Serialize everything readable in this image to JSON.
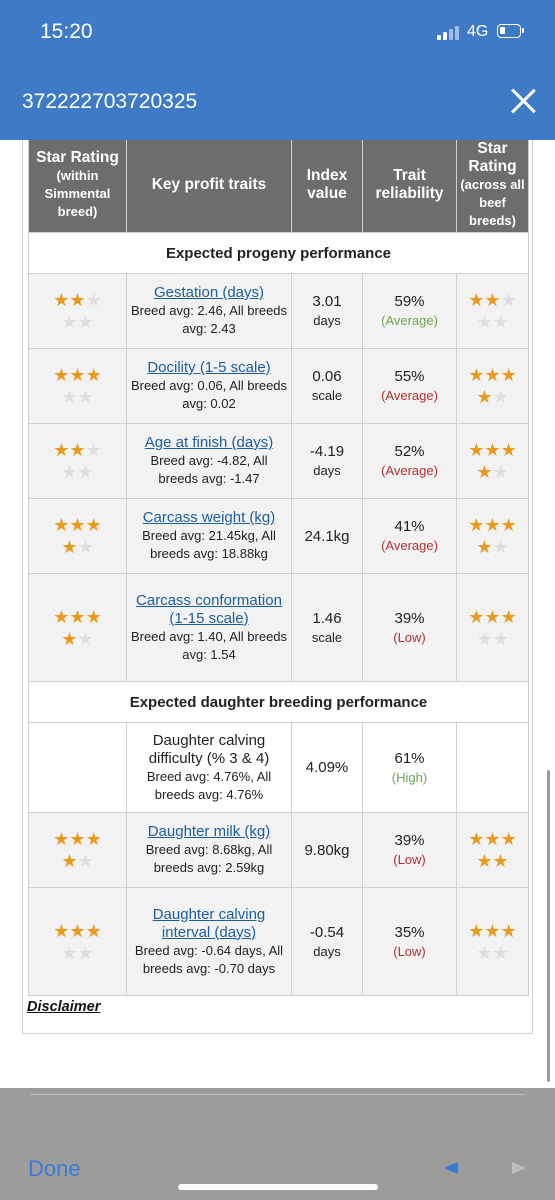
{
  "status": {
    "time": "15:20",
    "network": "4G"
  },
  "titlebar": {
    "title": "372222703720325"
  },
  "table": {
    "headers": {
      "star_left_title": "Star Rating",
      "star_left_sub": "(within Simmental breed)",
      "traits": "Key profit traits",
      "index": "Index value",
      "reliability": "Trait reliability",
      "star_right_title": "Star Rating",
      "star_right_sub": "(across all beef breeds)"
    },
    "sections": {
      "progeny": "Expected progeny performance",
      "daughter": "Expected daughter breeding performance"
    },
    "rows": [
      {
        "trait": "Gestation (days)",
        "avg": "Breed avg: 2.46, All breeds avg: 2.43",
        "index": "3.01",
        "unit": "days",
        "rel": "59%",
        "rel_q": "(Average)",
        "q_class": "avgc",
        "stars_left": 2,
        "stars_right": 2,
        "link": true
      },
      {
        "trait": "Docility (1-5 scale)",
        "avg": "Breed avg: 0.06, All breeds avg: 0.02",
        "index": "0.06",
        "unit": "scale",
        "rel": "55%",
        "rel_q": "(Average)",
        "q_class": "low",
        "stars_left": 3,
        "stars_right": 4,
        "link": true
      },
      {
        "trait": "Age at finish (days)",
        "avg": "Breed avg: -4.82, All breeds avg: -1.47",
        "index": "-4.19",
        "unit": "days",
        "rel": "52%",
        "rel_q": "(Average)",
        "q_class": "low",
        "stars_left": 2,
        "stars_right": 4,
        "link": true
      },
      {
        "trait": "Carcass weight (kg)",
        "avg": "Breed avg: 21.45kg, All breeds avg: 18.88kg",
        "index": "24.1kg",
        "unit": "",
        "rel": "41%",
        "rel_q": "(Average)",
        "q_class": "low",
        "stars_left": 4,
        "stars_right": 4,
        "link": true
      },
      {
        "trait": "Carcass conformation (1-15 scale)",
        "avg": "Breed avg: 1.40, All breeds avg: 1.54",
        "index": "1.46",
        "unit": "scale",
        "rel": "39%",
        "rel_q": "(Low)",
        "q_class": "low",
        "stars_left": 4,
        "stars_right": 3,
        "link": true
      },
      {
        "section": "daughter"
      },
      {
        "trait": "Daughter calving difficulty (% 3 & 4)",
        "avg": "Breed avg: 4.76%, All breeds avg: 4.76%",
        "index": "4.09%",
        "unit": "",
        "rel": "61%",
        "rel_q": "(High)",
        "q_class": "avgc",
        "stars_left": 0,
        "stars_right": 0,
        "link": false,
        "nostars": true
      },
      {
        "trait": "Daughter milk (kg)",
        "avg": "Breed avg: 8.68kg, All breeds avg: 2.59kg",
        "index": "9.80kg",
        "unit": "",
        "rel": "39%",
        "rel_q": "(Low)",
        "q_class": "low",
        "stars_left": 4,
        "stars_right": 5,
        "link": true
      },
      {
        "trait": "Daughter calving interval (days)",
        "avg": "Breed avg: -0.64 days, All breeds avg: -0.70 days",
        "index": "-0.54",
        "unit": "days",
        "rel": "35%",
        "rel_q": "(Low)",
        "q_class": "low",
        "stars_left": 3,
        "stars_right": 3,
        "link": true
      }
    ]
  },
  "disclaimer": "Disclaimer",
  "bottom": {
    "done": "Done"
  }
}
